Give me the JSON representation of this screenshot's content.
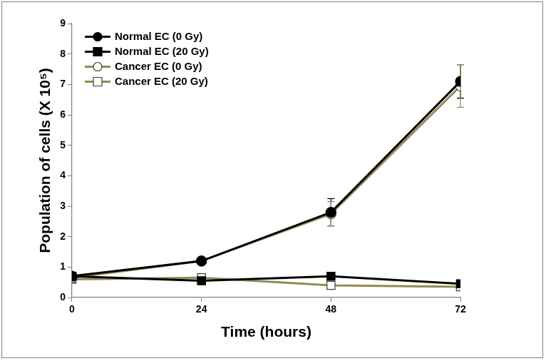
{
  "chart_data": {
    "type": "line",
    "x_label": "Time (hours)",
    "y_label": "Population of cells (X 10⁵)",
    "x": [
      0,
      24,
      48,
      72
    ],
    "xlim": [
      0,
      72
    ],
    "xticks": [
      0,
      24,
      48,
      72
    ],
    "ylim": [
      0,
      9
    ],
    "yticks": [
      0,
      1,
      2,
      3,
      4,
      5,
      6,
      7,
      8,
      9
    ],
    "grid": false,
    "legend": "upper left",
    "series": [
      {
        "name": "Normal EC (0 Gy)",
        "color": "#000000",
        "marker": "circle",
        "values": [
          0.7,
          1.2,
          2.8,
          7.1
        ],
        "errors": [
          null,
          null,
          0.45,
          0.55
        ]
      },
      {
        "name": "Normal EC (20 Gy)",
        "color": "#000000",
        "marker": "square",
        "values": [
          0.7,
          0.55,
          0.7,
          0.45
        ]
      },
      {
        "name": "Cancer EC (0 Gy)",
        "color": "#948a54",
        "marker": "open_circle",
        "values": [
          0.65,
          1.2,
          2.75,
          6.95
        ],
        "errors": [
          null,
          null,
          0.4,
          0.7
        ]
      },
      {
        "name": "Cancer EC (20 Gy)",
        "color": "#948a54",
        "marker": "open_square",
        "values": [
          0.6,
          0.65,
          0.4,
          0.35
        ]
      }
    ]
  }
}
